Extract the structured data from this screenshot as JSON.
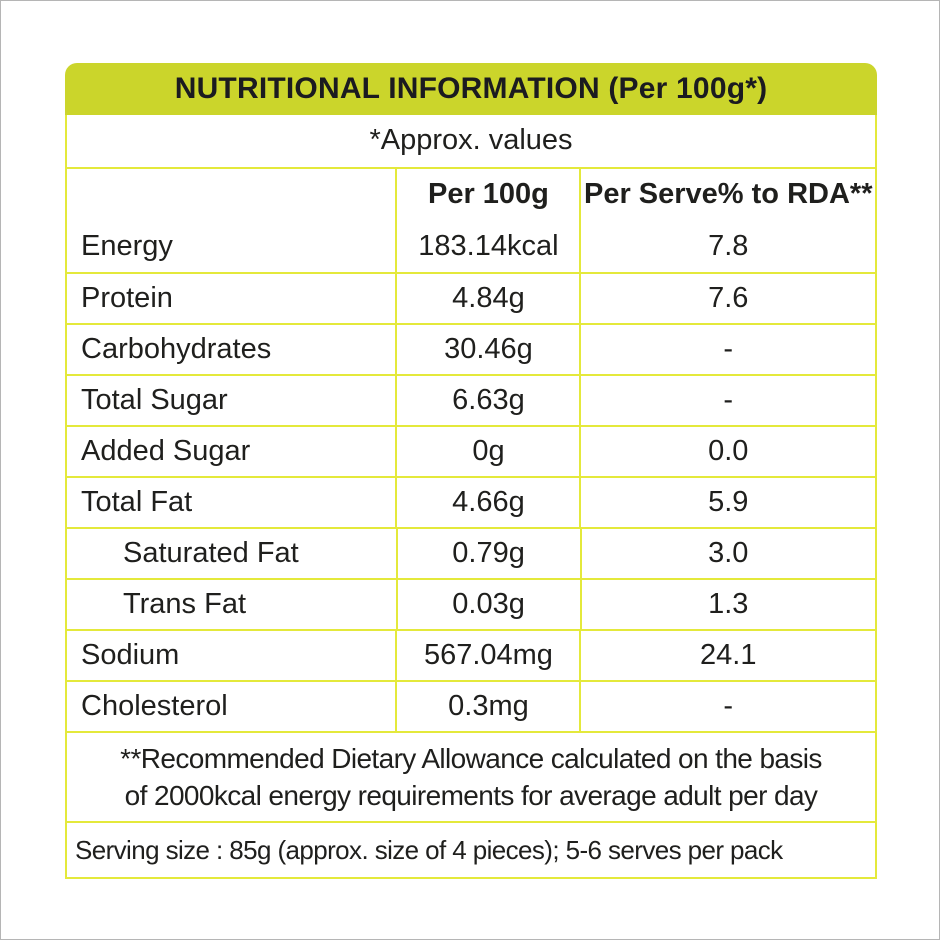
{
  "header": {
    "title": "NUTRITIONAL INFORMATION (Per 100g*)"
  },
  "table": {
    "approx_note": "*Approx. values",
    "columns": [
      "",
      "Per 100g",
      "Per Serve% to RDA**"
    ],
    "rows": [
      {
        "label": "Energy",
        "per_100g": "183.14kcal",
        "per_serve_rda": "7.8",
        "indent": false
      },
      {
        "label": "Protein",
        "per_100g": "4.84g",
        "per_serve_rda": "7.6",
        "indent": false
      },
      {
        "label": "Carbohydrates",
        "per_100g": "30.46g",
        "per_serve_rda": "-",
        "indent": false
      },
      {
        "label": "Total Sugar",
        "per_100g": "6.63g",
        "per_serve_rda": "-",
        "indent": false
      },
      {
        "label": "Added Sugar",
        "per_100g": "0g",
        "per_serve_rda": "0.0",
        "indent": false
      },
      {
        "label": "Total Fat",
        "per_100g": "4.66g",
        "per_serve_rda": "5.9",
        "indent": false
      },
      {
        "label": "Saturated Fat",
        "per_100g": "0.79g",
        "per_serve_rda": "3.0",
        "indent": true
      },
      {
        "label": "Trans Fat",
        "per_100g": "0.03g",
        "per_serve_rda": "1.3",
        "indent": true
      },
      {
        "label": "Sodium",
        "per_100g": "567.04mg",
        "per_serve_rda": "24.1",
        "indent": false
      },
      {
        "label": "Cholesterol",
        "per_100g": "0.3mg",
        "per_serve_rda": "-",
        "indent": false
      }
    ]
  },
  "footnotes": {
    "rda_note": "**Recommended Dietary Allowance calculated on the basis\nof 2000kcal energy requirements for average adult per day",
    "serving_note": "Serving size : 85g (approx. size of 4 pieces); 5-6 serves per pack"
  },
  "colors": {
    "header_bg": "#cbd52b",
    "border": "#e4e93b",
    "text": "#1f1f1d"
  }
}
